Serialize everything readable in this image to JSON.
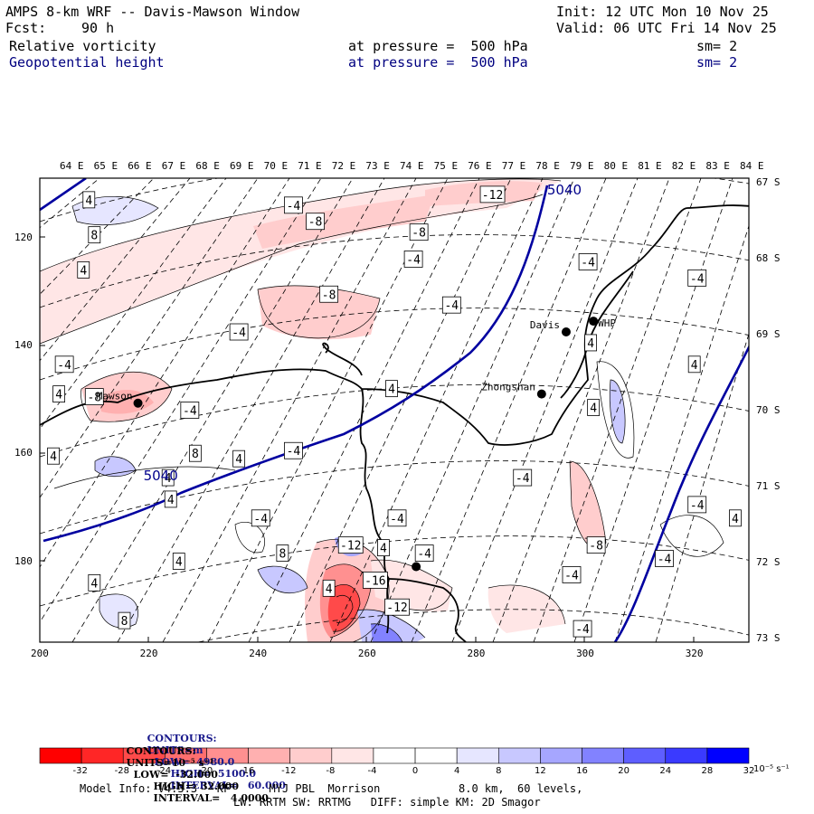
{
  "header": {
    "title": "AMPS 8-km WRF -- Davis-Mawson Window",
    "init": "Init: 12 UTC Mon 10 Nov 25",
    "fcst_label": "Fcst:",
    "fcst_value": "90 h",
    "valid": "Valid: 06 UTC Fri 14 Nov 25",
    "fields": [
      {
        "name": "Relative vorticity",
        "level": "at pressure =  500 hPa",
        "smooth": "sm= 2"
      },
      {
        "name": "Geopotential height",
        "level": "at pressure =  500 hPa",
        "smooth": "sm= 2"
      }
    ]
  },
  "chart_data": {
    "type": "heatmap",
    "title": "Relative vorticity and Geopotential height at 500 hPa",
    "xlim": [
      200,
      330
    ],
    "ylim": [
      195,
      109
    ],
    "x_ticks": [
      "200",
      "220",
      "240",
      "260",
      "280",
      "300",
      "320"
    ],
    "y_ticks": [
      "120",
      "140",
      "160",
      "180"
    ],
    "lon_labels": [
      "64 E",
      "65 E",
      "66 E",
      "67 E",
      "68 E",
      "69 E",
      "70 E",
      "71 E",
      "72 E",
      "73 E",
      "74 E",
      "75 E",
      "76 E",
      "77 E",
      "78 E",
      "79 E",
      "80 E",
      "81 E",
      "82 E",
      "83 E",
      "84 E"
    ],
    "lat_labels": [
      "67 S",
      "68 S",
      "69 S",
      "70 S",
      "71 S",
      "72 S",
      "73 S"
    ],
    "height_contour_labels": [
      {
        "text": "5040",
        "x": 293,
        "y": 112
      },
      {
        "text": "5040",
        "x": 219,
        "y": 165
      }
    ],
    "stations": [
      {
        "name": "Davis",
        "x": 296.5,
        "y": 137.5
      },
      {
        "name": "WHP",
        "x": 301.5,
        "y": 135.5
      },
      {
        "name": "Zhongshan",
        "x": 292,
        "y": 149
      },
      {
        "name": "Mawson",
        "x": 218,
        "y": 150.7
      },
      {
        "name": "",
        "x": 269,
        "y": 181
      }
    ],
    "vorticity_labels": [
      {
        "t": "4",
        "x": 209,
        "y": 113
      },
      {
        "t": "8",
        "x": 210,
        "y": 119.5
      },
      {
        "t": "4",
        "x": 208,
        "y": 126
      },
      {
        "t": "-4",
        "x": 246.5,
        "y": 114
      },
      {
        "t": "-8",
        "x": 250.5,
        "y": 117
      },
      {
        "t": "-12",
        "x": 283,
        "y": 112
      },
      {
        "t": "-8",
        "x": 269.5,
        "y": 119
      },
      {
        "t": "-4",
        "x": 268.5,
        "y": 124
      },
      {
        "t": "-8",
        "x": 253,
        "y": 130.5
      },
      {
        "t": "-4",
        "x": 275.5,
        "y": 132.5
      },
      {
        "t": "-4",
        "x": 300.5,
        "y": 124.5
      },
      {
        "t": "-4",
        "x": 320.5,
        "y": 127.5
      },
      {
        "t": "-4",
        "x": 236.5,
        "y": 137.5
      },
      {
        "t": "-4",
        "x": 204.5,
        "y": 143.5
      },
      {
        "t": "4",
        "x": 203.5,
        "y": 149
      },
      {
        "t": "-8",
        "x": 210,
        "y": 149.5
      },
      {
        "t": "-4",
        "x": 227.5,
        "y": 152
      },
      {
        "t": "4",
        "x": 264.5,
        "y": 148
      },
      {
        "t": "4",
        "x": 301,
        "y": 139.5
      },
      {
        "t": "4",
        "x": 320,
        "y": 143.5
      },
      {
        "t": "4",
        "x": 301.5,
        "y": 151.5
      },
      {
        "t": "4",
        "x": 202.5,
        "y": 160.5
      },
      {
        "t": "8",
        "x": 228.5,
        "y": 160
      },
      {
        "t": "4",
        "x": 236.5,
        "y": 161
      },
      {
        "t": "-4",
        "x": 246.5,
        "y": 159.5
      },
      {
        "t": "4",
        "x": 223.5,
        "y": 164.5
      },
      {
        "t": "4",
        "x": 224,
        "y": 168.5
      },
      {
        "t": "-4",
        "x": 240.5,
        "y": 172
      },
      {
        "t": "-4",
        "x": 288.5,
        "y": 164.5
      },
      {
        "t": "-4",
        "x": 320.5,
        "y": 169.5
      },
      {
        "t": "4",
        "x": 327.5,
        "y": 172
      },
      {
        "t": "-4",
        "x": 265.5,
        "y": 172
      },
      {
        "t": "8",
        "x": 244.5,
        "y": 178.5
      },
      {
        "t": "4",
        "x": 225.5,
        "y": 180
      },
      {
        "t": "4",
        "x": 210,
        "y": 184
      },
      {
        "t": "8",
        "x": 215.5,
        "y": 191
      },
      {
        "t": "-12",
        "x": 257,
        "y": 177
      },
      {
        "t": "4",
        "x": 263,
        "y": 177.5
      },
      {
        "t": "-4",
        "x": 270.5,
        "y": 178.5
      },
      {
        "t": "-16",
        "x": 261.5,
        "y": 183.5
      },
      {
        "t": "4",
        "x": 253,
        "y": 185
      },
      {
        "t": "-12",
        "x": 265.5,
        "y": 188.5
      },
      {
        "t": "-8",
        "x": 302,
        "y": 177
      },
      {
        "t": "-4",
        "x": 314.5,
        "y": 179.5
      },
      {
        "t": "-4",
        "x": 297.5,
        "y": 182.5
      },
      {
        "t": "-4",
        "x": 299.5,
        "y": 192.5
      }
    ]
  },
  "contour_info": [
    {
      "label": "CONTOURS:",
      "units_label": "UNITS=",
      "units_value": "m",
      "low": "LOW=  4980.0",
      "high": "HIGH=  5100.0",
      "interval": "INTERVAL=   60.000"
    },
    {
      "label": "CONTOURS:",
      "units_label": "UNITS=",
      "units_value": "10⁻⁵ s⁻¹",
      "low": "LOW=  -32.000",
      "high": "HIGH=  32.000",
      "interval": "INTERVAL=   4.0000"
    }
  ],
  "colorbar": {
    "colors": [
      "#ff0000",
      "#ff2626",
      "#ff4a4a",
      "#ff6e6e",
      "#ff9090",
      "#ffb0b0",
      "#ffcdcd",
      "#ffe6e6",
      "#ffffff",
      "#ffffff",
      "#e6e6ff",
      "#c8c8ff",
      "#a6a6ff",
      "#8282ff",
      "#5e5eff",
      "#3a3aff",
      "#0000ff"
    ],
    "ticks": [
      "-32",
      "-28",
      "-24",
      "-20",
      "-16",
      "-12",
      "-8",
      "-4",
      "0",
      "4",
      "8",
      "12",
      "16",
      "20",
      "24",
      "28",
      "32"
    ],
    "units": "10⁻⁵ s⁻¹"
  },
  "footer": {
    "line1": "Model Info: V4.3.3   KF      MYJ PBL  Morrison            8.0 km,  60 levels,",
    "line2": "LW: RRTM SW: RRTMG   DIFF: simple KM: 2D Smagor"
  }
}
